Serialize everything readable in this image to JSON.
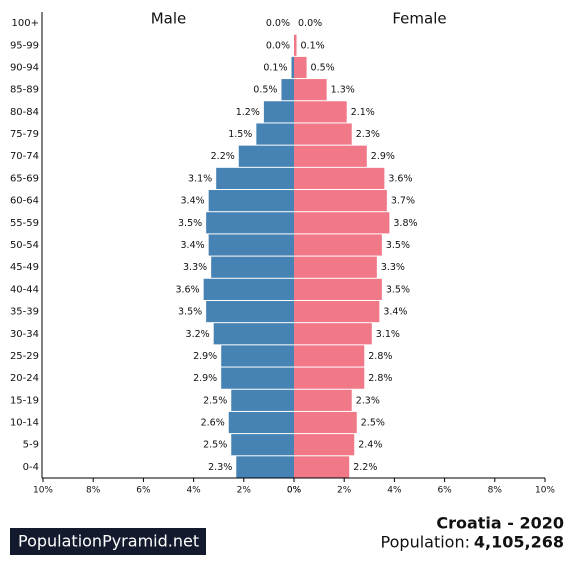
{
  "chart_data": {
    "type": "pyramid",
    "categories": [
      "100+",
      "95-99",
      "90-94",
      "85-89",
      "80-84",
      "75-79",
      "70-74",
      "65-69",
      "60-64",
      "55-59",
      "50-54",
      "45-49",
      "40-44",
      "35-39",
      "30-34",
      "25-29",
      "20-24",
      "15-19",
      "10-14",
      "5-9",
      "0-4"
    ],
    "series": [
      {
        "name": "Male",
        "color": "#4682b4",
        "values": [
          0.0,
          0.0,
          0.1,
          0.5,
          1.2,
          1.5,
          2.2,
          3.1,
          3.4,
          3.5,
          3.4,
          3.3,
          3.6,
          3.5,
          3.2,
          2.9,
          2.9,
          2.5,
          2.6,
          2.5,
          2.3
        ],
        "value_labels": [
          "0.0%",
          "0.0%",
          "0.1%",
          "0.5%",
          "1.2%",
          "1.5%",
          "2.2%",
          "3.1%",
          "3.4%",
          "3.5%",
          "3.4%",
          "3.3%",
          "3.6%",
          "3.5%",
          "3.2%",
          "2.9%",
          "2.9%",
          "2.5%",
          "2.6%",
          "2.5%",
          "2.3%"
        ],
        "xlim": [
          10,
          0
        ],
        "xticks": [
          {
            "value": 10,
            "label": "10%"
          },
          {
            "value": 8,
            "label": "8%"
          },
          {
            "value": 6,
            "label": "6%"
          },
          {
            "value": 4,
            "label": "4%"
          },
          {
            "value": 2,
            "label": "2%"
          },
          {
            "value": 0,
            "label": "0%"
          }
        ]
      },
      {
        "name": "Female",
        "color": "#f07887",
        "values": [
          0.0,
          0.1,
          0.5,
          1.3,
          2.1,
          2.3,
          2.9,
          3.6,
          3.7,
          3.8,
          3.5,
          3.3,
          3.5,
          3.4,
          3.1,
          2.8,
          2.8,
          2.3,
          2.5,
          2.4,
          2.2
        ],
        "value_labels": [
          "0.0%",
          "0.1%",
          "0.5%",
          "1.3%",
          "2.1%",
          "2.3%",
          "2.9%",
          "3.6%",
          "3.7%",
          "3.8%",
          "3.5%",
          "3.3%",
          "3.5%",
          "3.4%",
          "3.1%",
          "2.8%",
          "2.8%",
          "2.3%",
          "2.5%",
          "2.4%",
          "2.2%"
        ],
        "xlim": [
          0,
          10
        ],
        "xticks": [
          {
            "value": 0,
            "label": "0%"
          },
          {
            "value": 2,
            "label": "2%"
          },
          {
            "value": 4,
            "label": "4%"
          },
          {
            "value": 6,
            "label": "6%"
          },
          {
            "value": 8,
            "label": "8%"
          },
          {
            "value": 10,
            "label": "10%"
          }
        ]
      }
    ],
    "title": "Croatia - 2020",
    "population_label": "Population:",
    "population": {
      "value": 4105268,
      "label": "4,105,268"
    },
    "brand": "PopulationPyramid.net"
  }
}
